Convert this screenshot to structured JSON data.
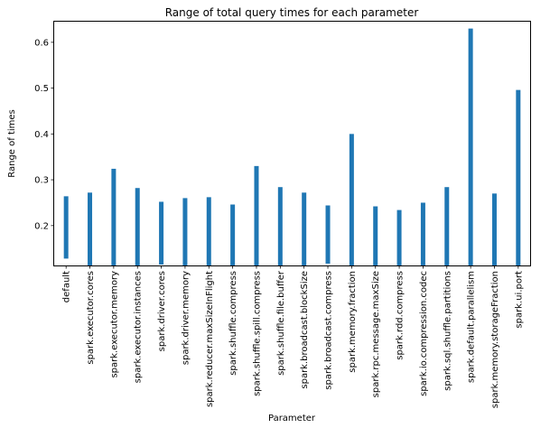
{
  "chart_data": {
    "type": "bar",
    "title": "Range of total query times for each parameter",
    "xlabel": "Parameter",
    "ylabel": "Range of times",
    "ylim": [
      0.113,
      0.645
    ],
    "yticks": [
      0.2,
      0.3,
      0.4,
      0.5,
      0.6
    ],
    "ytick_labels": [
      "0.2",
      "0.3",
      "0.4",
      "0.5",
      "0.6"
    ],
    "grid": false,
    "legend": "none",
    "bar_color": "#1f77b4",
    "categories": [
      "default",
      "spark.executor.cores",
      "spark.executor.memory",
      "spark.executor.instances",
      "spark.driver.cores",
      "spark.driver.memory",
      "spark.reducer.maxSizeInFlight",
      "spark.shuffle.compress",
      "spark.shuffle.spill.compress",
      "spark.shuffle.file.buffer",
      "spark.broadcast.blockSize",
      "spark.broadcast.compress",
      "spark.memory.fraction",
      "spark.rpc.message.maxSize",
      "spark.rdd.compress",
      "spark.io.compression.codec",
      "spark.sql.shuffle.partitions",
      "spark.default.parallelism",
      "spark.memory.storageFraction",
      "spark.ui.port"
    ],
    "ranges": [
      [
        0.128,
        0.264
      ],
      [
        0.113,
        0.272
      ],
      [
        0.113,
        0.324
      ],
      [
        0.113,
        0.282
      ],
      [
        0.115,
        0.252
      ],
      [
        0.113,
        0.26
      ],
      [
        0.113,
        0.262
      ],
      [
        0.113,
        0.246
      ],
      [
        0.113,
        0.33
      ],
      [
        0.113,
        0.284
      ],
      [
        0.113,
        0.272
      ],
      [
        0.117,
        0.244
      ],
      [
        0.113,
        0.4
      ],
      [
        0.113,
        0.242
      ],
      [
        0.113,
        0.234
      ],
      [
        0.113,
        0.25
      ],
      [
        0.113,
        0.284
      ],
      [
        0.113,
        0.63
      ],
      [
        0.113,
        0.27
      ],
      [
        0.113,
        0.496
      ]
    ]
  }
}
